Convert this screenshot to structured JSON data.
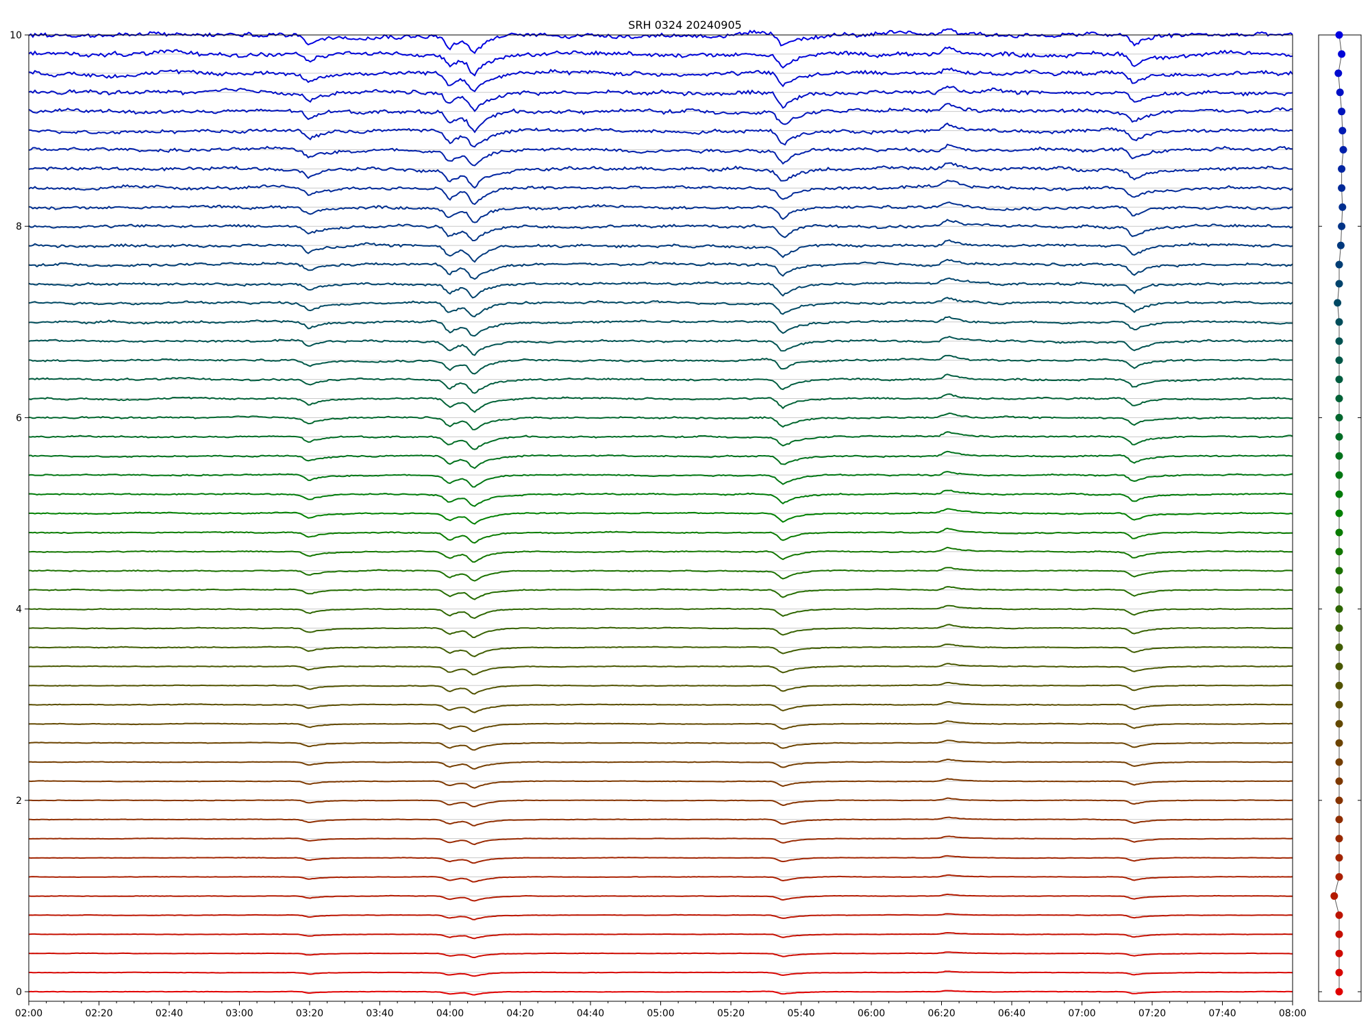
{
  "chart_data": {
    "type": "line",
    "title": "SRH 0324 20240905",
    "xlabel": "",
    "ylabel": "",
    "x_range": [
      "02:00",
      "08:00"
    ],
    "ylim": [
      -0.1,
      10
    ],
    "grid": "horizontal baseline per trace",
    "legend": "none",
    "x_ticks": [
      "02:00",
      "02:20",
      "02:40",
      "03:00",
      "03:20",
      "03:40",
      "04:00",
      "04:20",
      "04:40",
      "05:00",
      "05:20",
      "05:40",
      "06:00",
      "06:20",
      "06:40",
      "07:00",
      "07:20",
      "07:40",
      "08:00"
    ],
    "y_ticks": [
      0,
      2,
      4,
      6,
      8,
      10
    ],
    "y_tick_labels": [
      "0",
      "2",
      "4",
      "6",
      "8",
      "10"
    ],
    "series_count": 51,
    "trace_spacing": 0.2,
    "color_gradient": [
      "#e00000",
      "#008000",
      "#0000e0"
    ],
    "side_panel": {
      "type": "scatter",
      "marker_values": [
        0.0,
        0.0,
        0.0,
        0.0,
        0.0,
        -0.6,
        0.0,
        0.0,
        0.0,
        0.0,
        0.0,
        0.0,
        0.0,
        0.0,
        0.0,
        0.0,
        0.0,
        0.0,
        0.0,
        0.0,
        0.0,
        0.0,
        0.0,
        0.0,
        0.0,
        0.0,
        0.0,
        0.0,
        0.0,
        0.0,
        0.0,
        0.0,
        0.0,
        0.0,
        0.0,
        0.0,
        -0.2,
        0.0,
        0.0,
        0.2,
        0.3,
        0.4,
        0.3,
        0.3,
        0.5,
        0.4,
        0.3,
        0.1,
        -0.1,
        0.3,
        0.0
      ]
    },
    "features": [
      {
        "time": "03:20",
        "label": "dip",
        "amp": -0.06
      },
      {
        "time": "04:00",
        "label": "dip",
        "amp": -0.09
      },
      {
        "time": "04:07",
        "label": "dip",
        "amp": -0.12
      },
      {
        "time": "05:35",
        "label": "dip",
        "amp": -0.1
      },
      {
        "time": "06:22",
        "label": "step",
        "amp": 0.05
      },
      {
        "time": "07:15",
        "label": "dip",
        "amp": -0.08
      }
    ]
  }
}
